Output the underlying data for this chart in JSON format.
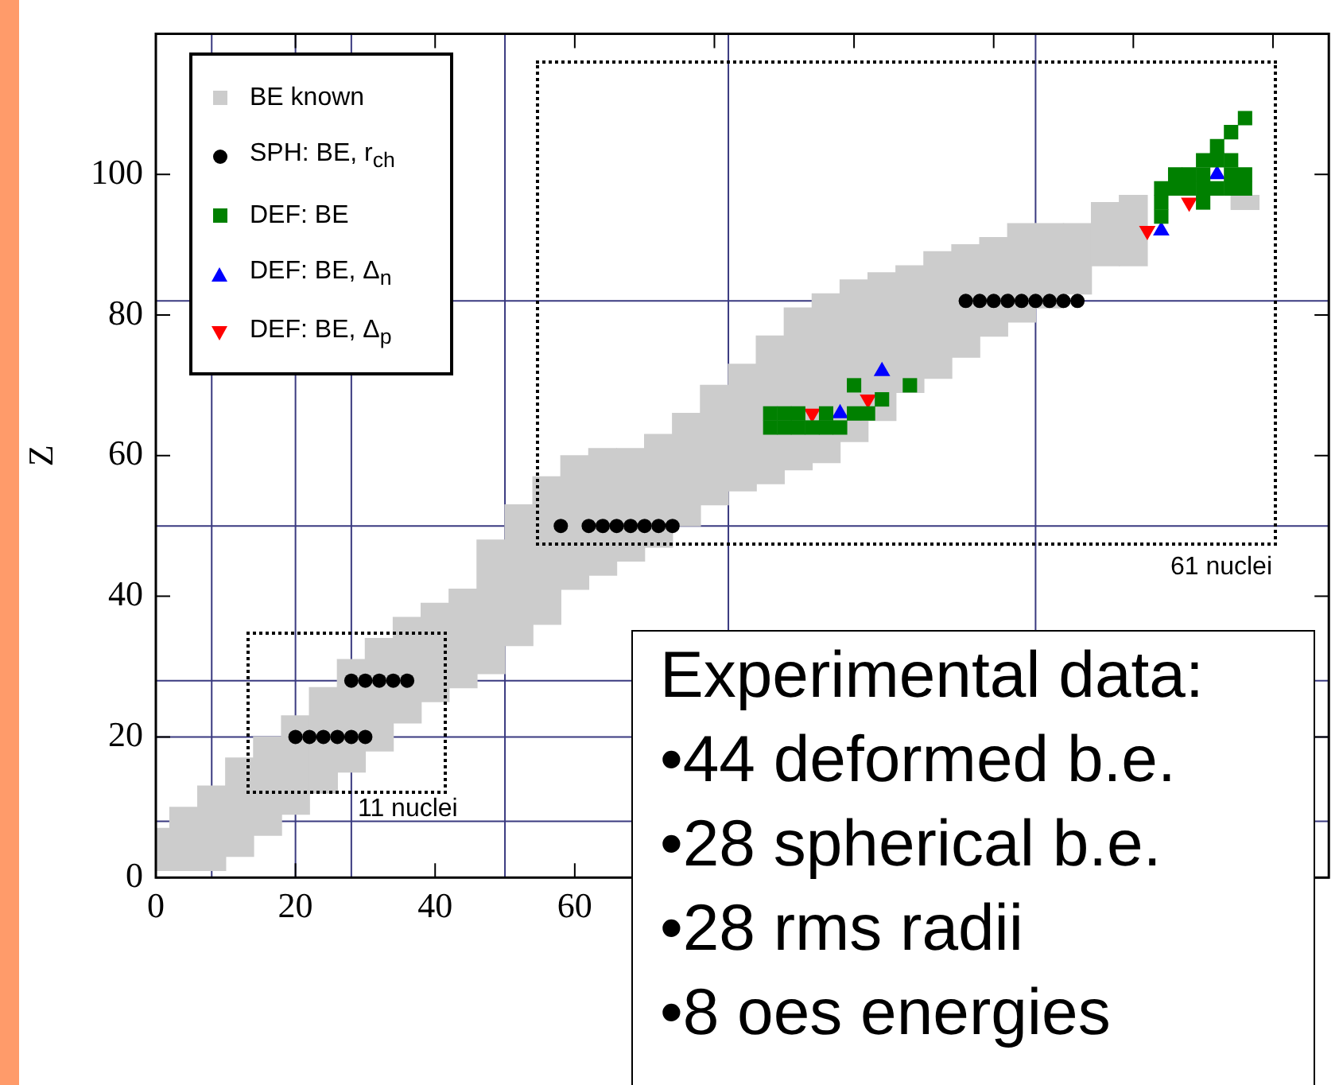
{
  "chart_data": {
    "type": "scatter",
    "ylabel": "Z",
    "xlim": [
      0,
      168
    ],
    "ylim": [
      0,
      120
    ],
    "xticks": [
      0,
      20,
      40,
      60,
      {
        "value": 80,
        "label": null
      },
      {
        "value": 100,
        "label": null
      },
      {
        "value": 120,
        "label": null
      },
      {
        "value": 140,
        "label": null
      },
      {
        "value": 160,
        "label": null
      }
    ],
    "yticks": [
      0,
      20,
      40,
      60,
      80,
      100
    ],
    "grid": false,
    "legend": "top left",
    "ref_lines": [
      {
        "axis": "x",
        "value": 8,
        "color": "#3a3a80"
      },
      {
        "axis": "x",
        "value": 20,
        "color": "#3a3a80"
      },
      {
        "axis": "x",
        "value": 28,
        "color": "#3a3a80"
      },
      {
        "axis": "x",
        "value": 50,
        "color": "#3a3a80"
      },
      {
        "axis": "x",
        "value": 82,
        "color": "#3a3a80"
      },
      {
        "axis": "x",
        "value": 126,
        "color": "#3a3a80"
      },
      {
        "axis": "y",
        "value": 8,
        "color": "#3a3a80"
      },
      {
        "axis": "y",
        "value": 20,
        "color": "#3a3a80"
      },
      {
        "axis": "y",
        "value": 28,
        "color": "#3a3a80"
      },
      {
        "axis": "y",
        "value": 50,
        "color": "#3a3a80"
      },
      {
        "axis": "y",
        "value": 82,
        "color": "#3a3a80"
      }
    ],
    "series": [
      {
        "type": "bar",
        "name": "BE known",
        "color": "#cccccc",
        "x": [
          0,
          4,
          8,
          12,
          16,
          20,
          24,
          28,
          32,
          36,
          40,
          44,
          48,
          52,
          56,
          60,
          64,
          68,
          72,
          76,
          80,
          84,
          88,
          92,
          96,
          100,
          104,
          108,
          112,
          116,
          120,
          124,
          128,
          132,
          136,
          140,
          144,
          148,
          152,
          156
        ],
        "base": [
          1,
          1,
          1,
          3,
          6,
          9,
          12,
          15,
          18,
          22,
          25,
          27,
          29,
          33,
          36,
          41,
          43,
          45,
          47,
          50,
          53,
          55,
          56,
          58,
          59,
          62,
          65,
          69,
          71,
          74,
          77,
          79,
          81,
          83,
          87,
          87,
          null,
          null,
          null,
          95
        ],
        "values": [
          6,
          9,
          12,
          14,
          14,
          14,
          15,
          16,
          16,
          15,
          14,
          14,
          19,
          20,
          21,
          19,
          18,
          16,
          16,
          16,
          17,
          18,
          21,
          23,
          24,
          23,
          21,
          18,
          18,
          16,
          14,
          14,
          12,
          10,
          9,
          10,
          null,
          null,
          null,
          2
        ]
      },
      {
        "name": "SPH: BE, r$_{ch}$",
        "color": "#000000",
        "marker": "circle",
        "x": [
          20,
          22,
          24,
          26,
          28,
          30,
          28,
          30,
          32,
          34,
          36,
          58,
          62,
          64,
          66,
          68,
          70,
          72,
          74,
          116,
          118,
          120,
          122,
          124,
          126,
          128,
          130,
          132
        ],
        "values": [
          20,
          20,
          20,
          20,
          20,
          20,
          28,
          28,
          28,
          28,
          28,
          50,
          50,
          50,
          50,
          50,
          50,
          50,
          50,
          82,
          82,
          82,
          82,
          82,
          82,
          82,
          82,
          82
        ]
      },
      {
        "name": "DEF: BE",
        "color": "#008000",
        "marker": "square",
        "x": [
          88,
          90,
          92,
          94,
          96,
          98,
          88,
          90,
          92,
          96,
          100,
          102,
          104,
          100,
          108,
          144,
          144,
          144,
          146,
          146,
          148,
          148,
          150,
          150,
          150,
          150,
          152,
          152,
          152,
          154,
          154,
          154,
          154,
          156,
          156,
          156
        ],
        "values": [
          64,
          64,
          64,
          64,
          64,
          64,
          66,
          66,
          66,
          66,
          66,
          66,
          68,
          70,
          70,
          94,
          96,
          98,
          98,
          100,
          98,
          100,
          96,
          98,
          100,
          102,
          98,
          102,
          104,
          98,
          100,
          102,
          106,
          98,
          100,
          108
        ]
      },
      {
        "name": "DEF: BE, Δ$_{n}$",
        "color": "#0000ff",
        "marker": "triangle",
        "x": [
          98,
          104,
          144,
          152
        ],
        "values": [
          66,
          72,
          92,
          100
        ]
      },
      {
        "name": "DEF: BE, Δ$_{p}$",
        "color": "#ff0000",
        "marker": "triangle-down",
        "x": [
          94,
          102,
          142,
          148
        ],
        "values": [
          66,
          68,
          92,
          96
        ]
      }
    ],
    "annotations": [
      "11 nuclei",
      "61 nuclei",
      "Experimental data:",
      "•44 deformed b.e.",
      "•28 spherical b.e.",
      "•28 rms radii",
      "•8 oes energies"
    ]
  }
}
